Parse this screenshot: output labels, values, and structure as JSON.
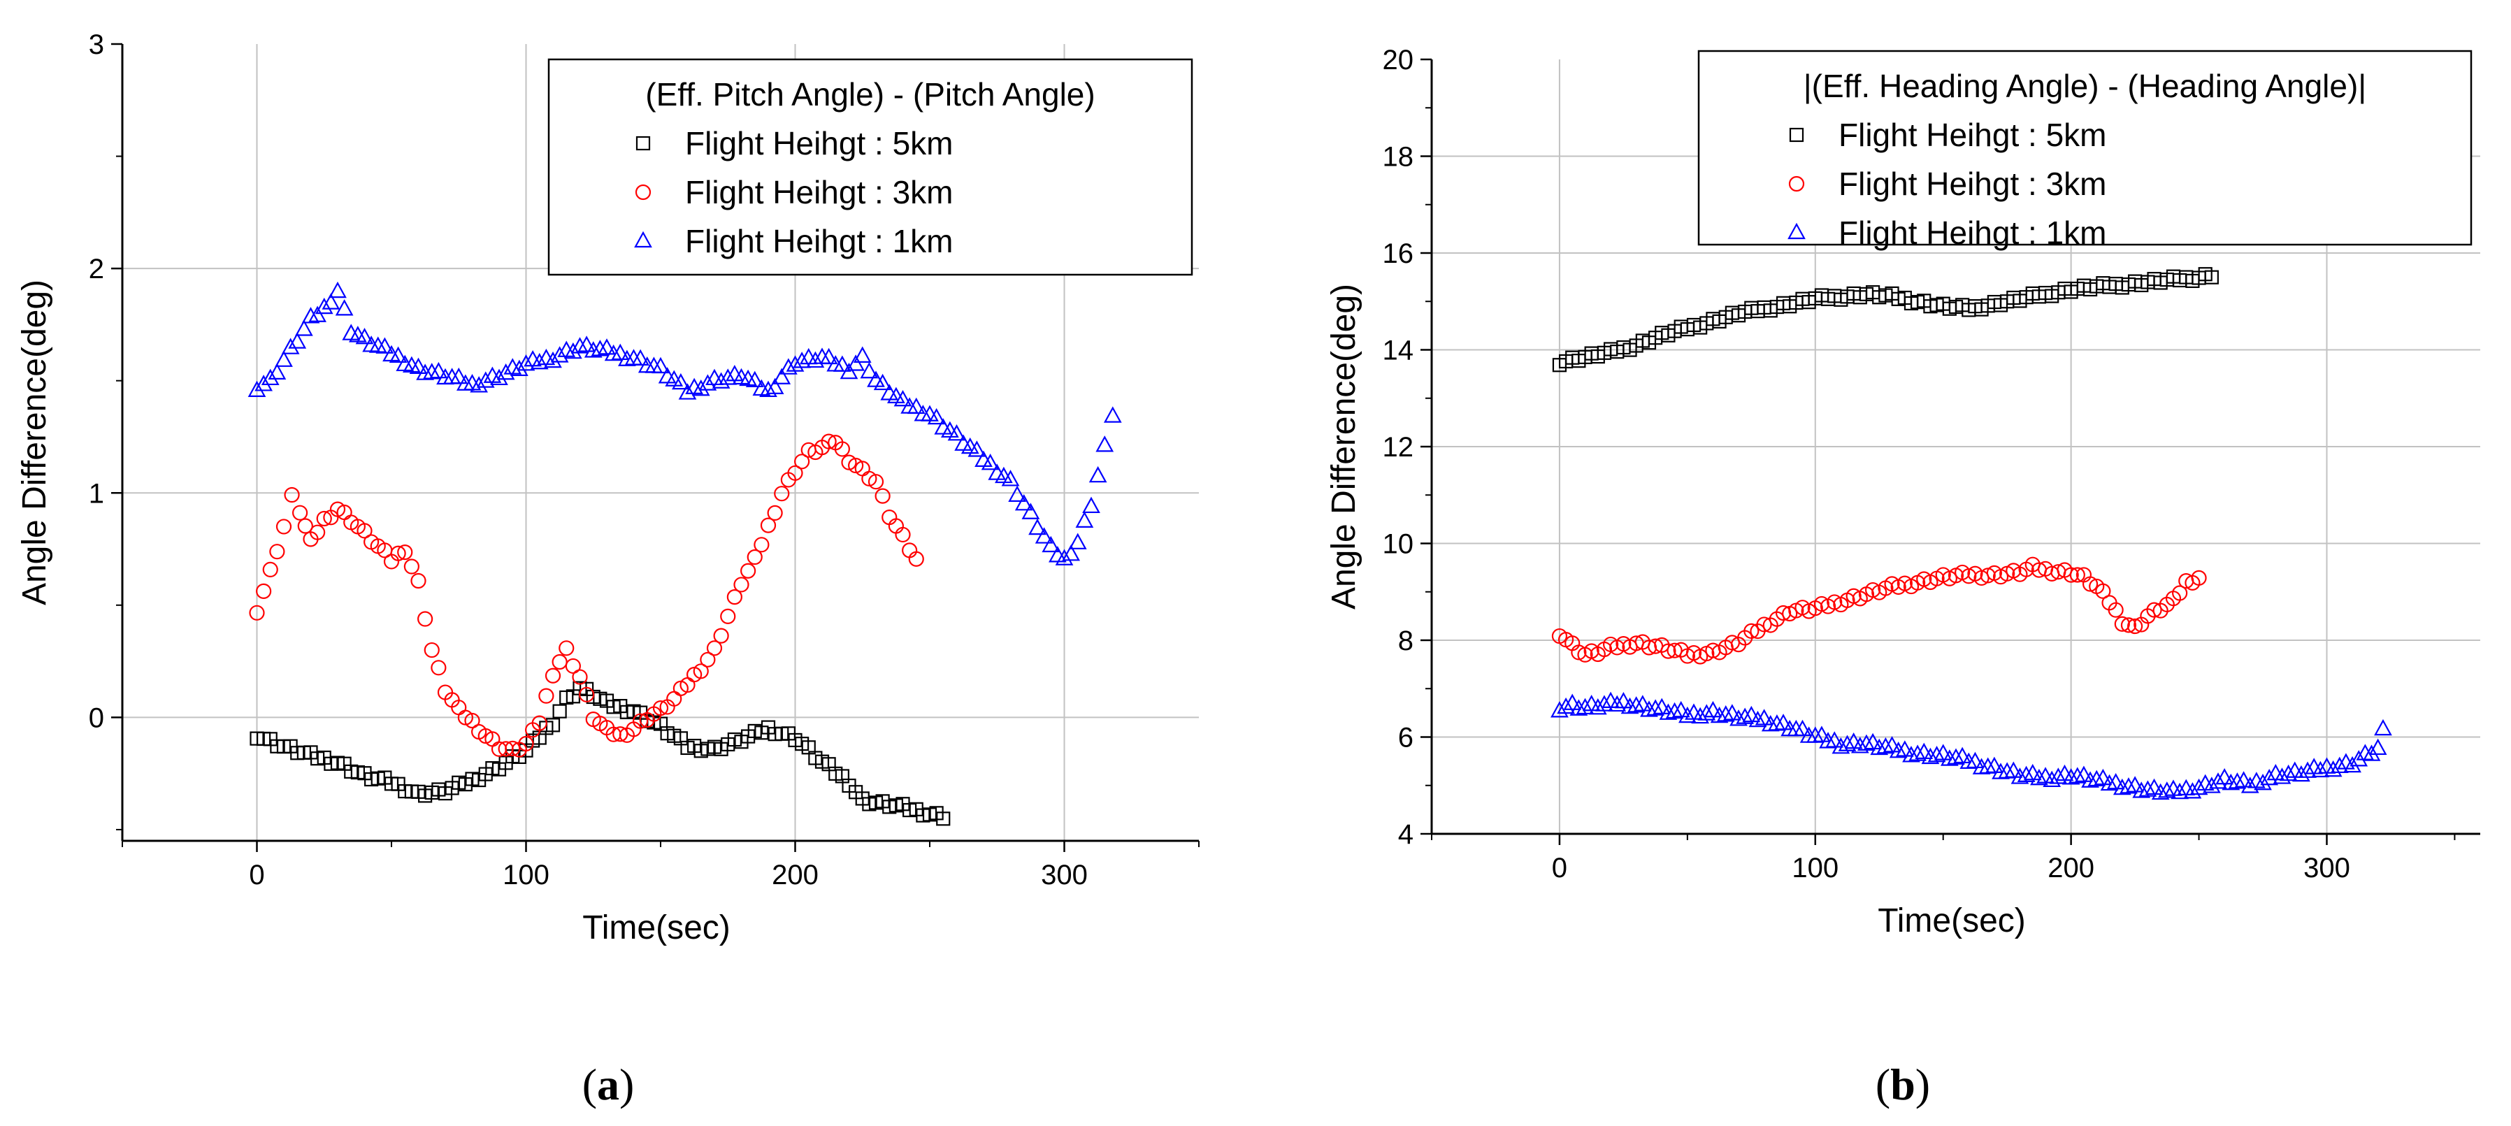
{
  "chart_data": [
    {
      "type": "scatter",
      "panel": "a",
      "caption_label": "a",
      "title": "",
      "xlabel": "Time(sec)",
      "ylabel": "Angle Difference(deg)",
      "xlim": [
        -50,
        350
      ],
      "ylim": [
        -0.55,
        3.0
      ],
      "xticks": [
        0,
        100,
        200,
        300
      ],
      "yticks": [
        0,
        1,
        2,
        3
      ],
      "grid": true,
      "legend_position": "top-right",
      "legend_title": "(Eff. Pitch Angle) - (Pitch Angle)",
      "series": [
        {
          "name": "Flight Heihgt : 5km",
          "marker": "square",
          "color": "#000000",
          "x": [
            0,
            10,
            20,
            30,
            40,
            50,
            60,
            70,
            80,
            90,
            100,
            110,
            115,
            120,
            125,
            130,
            140,
            150,
            160,
            170,
            180,
            190,
            200,
            210,
            220,
            225,
            230,
            240,
            250,
            255
          ],
          "y": [
            -0.08,
            -0.13,
            -0.17,
            -0.2,
            -0.26,
            -0.29,
            -0.34,
            -0.33,
            -0.28,
            -0.22,
            -0.15,
            -0.02,
            0.08,
            0.13,
            0.1,
            0.06,
            0.03,
            -0.04,
            -0.13,
            -0.14,
            -0.1,
            -0.05,
            -0.09,
            -0.2,
            -0.29,
            -0.37,
            -0.38,
            -0.4,
            -0.43,
            -0.44
          ]
        },
        {
          "name": "Flight Heihgt : 3km",
          "marker": "circle",
          "color": "#ff0000",
          "x": [
            0,
            5,
            10,
            13,
            16,
            20,
            25,
            30,
            35,
            40,
            45,
            50,
            55,
            60,
            65,
            70,
            75,
            80,
            85,
            90,
            95,
            100,
            105,
            110,
            115,
            120,
            125,
            130,
            135,
            140,
            145,
            150,
            155,
            160,
            165,
            170,
            175,
            180,
            185,
            190,
            195,
            200,
            205,
            210,
            215,
            220,
            225,
            230,
            235,
            240,
            245
          ],
          "y": [
            0.48,
            0.65,
            0.85,
            0.98,
            0.92,
            0.78,
            0.88,
            0.93,
            0.88,
            0.82,
            0.76,
            0.7,
            0.75,
            0.6,
            0.3,
            0.12,
            0.03,
            -0.02,
            -0.08,
            -0.13,
            -0.15,
            -0.12,
            -0.02,
            0.2,
            0.3,
            0.18,
            0.0,
            -0.06,
            -0.08,
            -0.05,
            0.0,
            0.03,
            0.08,
            0.15,
            0.22,
            0.3,
            0.45,
            0.6,
            0.7,
            0.85,
            1.0,
            1.1,
            1.18,
            1.2,
            1.23,
            1.15,
            1.1,
            1.05,
            0.9,
            0.8,
            0.7
          ]
        },
        {
          "name": "Flight Heihgt : 1km",
          "marker": "triangle",
          "color": "#0000ff",
          "x": [
            0,
            5,
            20,
            25,
            30,
            35,
            40,
            50,
            60,
            70,
            80,
            90,
            100,
            110,
            120,
            130,
            140,
            150,
            160,
            170,
            180,
            190,
            200,
            210,
            220,
            225,
            230,
            240,
            250,
            260,
            270,
            280,
            290,
            295,
            300,
            305,
            310,
            315,
            318
          ],
          "y": [
            1.47,
            1.5,
            1.77,
            1.82,
            1.9,
            1.72,
            1.68,
            1.62,
            1.55,
            1.52,
            1.48,
            1.52,
            1.57,
            1.6,
            1.65,
            1.63,
            1.6,
            1.55,
            1.45,
            1.5,
            1.52,
            1.45,
            1.58,
            1.6,
            1.55,
            1.6,
            1.5,
            1.4,
            1.35,
            1.25,
            1.15,
            1.05,
            0.85,
            0.75,
            0.7,
            0.78,
            0.95,
            1.2,
            1.35
          ]
        }
      ]
    },
    {
      "type": "scatter",
      "panel": "b",
      "caption_label": "b",
      "title": "",
      "xlabel": "Time(sec)",
      "ylabel": "Angle Difference(deg)",
      "xlim": [
        -50,
        360
      ],
      "ylim": [
        4,
        20
      ],
      "xticks": [
        0,
        100,
        200,
        300
      ],
      "yticks": [
        4,
        6,
        8,
        10,
        12,
        14,
        16,
        18,
        20
      ],
      "grid": true,
      "legend_position": "top-right",
      "legend_title": "|(Eff. Heading Angle) - (Heading Angle)|",
      "series": [
        {
          "name": "Flight Heihgt : 5km",
          "marker": "square",
          "color": "#000000",
          "x": [
            0,
            10,
            20,
            30,
            40,
            50,
            60,
            70,
            80,
            90,
            100,
            110,
            120,
            130,
            140,
            150,
            160,
            170,
            180,
            190,
            200,
            210,
            220,
            230,
            240,
            250,
            255
          ],
          "y": [
            13.75,
            13.85,
            13.95,
            14.1,
            14.3,
            14.45,
            14.6,
            14.75,
            14.85,
            14.95,
            15.05,
            15.1,
            15.15,
            15.1,
            15.0,
            14.9,
            14.85,
            14.95,
            15.05,
            15.15,
            15.25,
            15.3,
            15.35,
            15.4,
            15.45,
            15.5,
            15.55
          ]
        },
        {
          "name": "Flight Heihgt : 3km",
          "marker": "circle",
          "color": "#ff0000",
          "x": [
            0,
            5,
            10,
            15,
            20,
            30,
            40,
            50,
            60,
            70,
            80,
            90,
            100,
            110,
            120,
            130,
            140,
            150,
            160,
            170,
            180,
            185,
            190,
            200,
            205,
            210,
            215,
            220,
            225,
            230,
            240,
            245,
            250
          ],
          "y": [
            8.15,
            7.9,
            7.7,
            7.75,
            7.85,
            7.95,
            7.85,
            7.7,
            7.75,
            7.95,
            8.3,
            8.6,
            8.65,
            8.8,
            8.95,
            9.1,
            9.2,
            9.3,
            9.35,
            9.35,
            9.4,
            9.5,
            9.45,
            9.4,
            9.3,
            9.1,
            8.8,
            8.4,
            8.25,
            8.5,
            8.8,
            9.2,
            9.3
          ]
        },
        {
          "name": "Flight Heihgt : 1km",
          "marker": "triangle",
          "color": "#0000ff",
          "x": [
            0,
            5,
            10,
            25,
            30,
            40,
            50,
            60,
            70,
            80,
            90,
            100,
            110,
            120,
            130,
            140,
            150,
            160,
            170,
            180,
            190,
            200,
            210,
            220,
            230,
            240,
            250,
            260,
            270,
            280,
            290,
            300,
            310,
            320,
            322
          ],
          "y": [
            6.6,
            6.65,
            6.6,
            6.7,
            6.65,
            6.55,
            6.45,
            6.5,
            6.4,
            6.35,
            6.2,
            6.0,
            5.85,
            5.85,
            5.75,
            5.65,
            5.6,
            5.5,
            5.35,
            5.2,
            5.15,
            5.2,
            5.1,
            5.0,
            4.9,
            4.85,
            4.95,
            5.1,
            5.0,
            5.2,
            5.25,
            5.35,
            5.45,
            5.75,
            6.1
          ]
        }
      ]
    }
  ]
}
